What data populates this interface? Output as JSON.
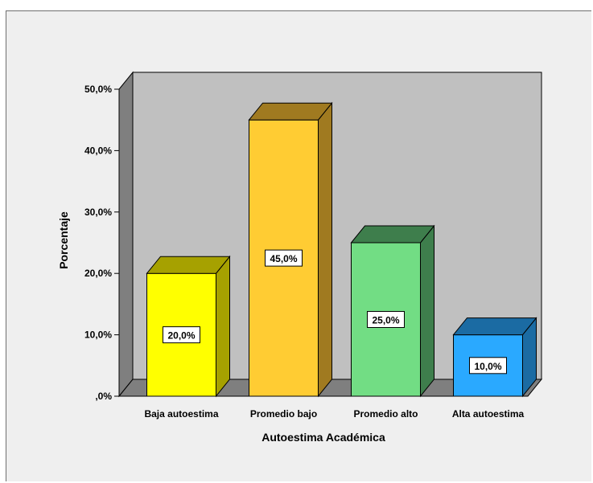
{
  "chart_data": {
    "type": "bar",
    "categories": [
      "Baja autoestima",
      "Promedio bajo",
      "Promedio alto",
      "Alta autoestima"
    ],
    "values": [
      20.0,
      45.0,
      25.0,
      10.0
    ],
    "data_labels": [
      "20,0%",
      "45,0%",
      "25,0%",
      "10,0%"
    ],
    "xlabel": "Autoestima Académica",
    "ylabel": "Porcentaje",
    "ylim": [
      0,
      50
    ],
    "yticks": [
      0,
      10,
      20,
      30,
      40,
      50
    ],
    "ytick_labels": [
      ",0%",
      "10,0%",
      "20,0%",
      "30,0%",
      "40,0%",
      "50,0%"
    ],
    "grid": false,
    "three_d": true,
    "colors": {
      "front": [
        "#ffff00",
        "#ffcc33",
        "#72dd84",
        "#2aa9ff"
      ],
      "side": [
        "#a6a100",
        "#a07a20",
        "#3e7e4c",
        "#1b6ba3"
      ],
      "top": [
        "#a6a100",
        "#a07a20",
        "#3e7e4c",
        "#1b6ba3"
      ],
      "backwall": "#c0c0c0",
      "sidewall": "#7f7f7f",
      "floor": "#7f7f7f"
    }
  }
}
